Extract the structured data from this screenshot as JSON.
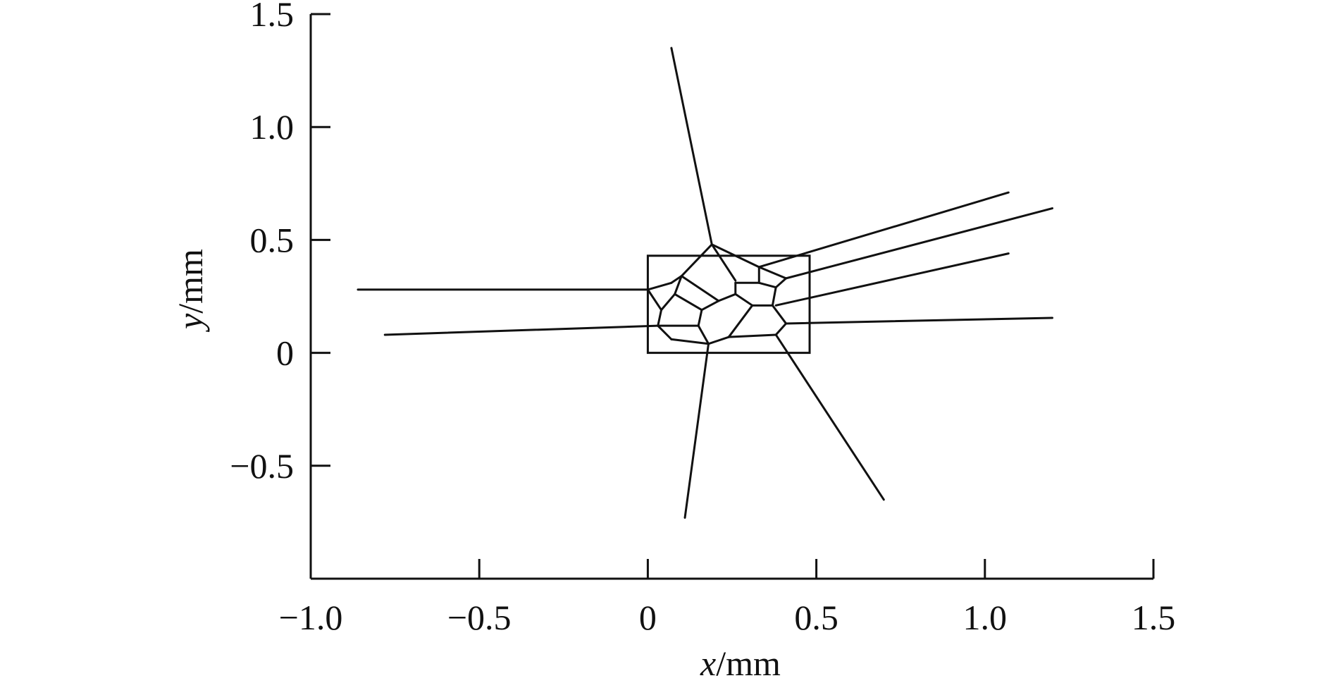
{
  "chart_data": {
    "type": "line",
    "title": "",
    "xlabel": {
      "var": "x",
      "unit": "/mm"
    },
    "ylabel": {
      "var": "y",
      "unit": "/mm"
    },
    "xlim": [
      -1.0,
      1.5
    ],
    "ylim": [
      -1.0,
      1.5
    ],
    "x_ticks": [
      -1.0,
      -0.5,
      0,
      0.5,
      1.0,
      1.5
    ],
    "x_tick_labels": [
      "−1.0",
      "−0.5",
      "0",
      "0.5",
      "1.0",
      "1.5"
    ],
    "y_ticks": [
      -0.5,
      0,
      0.5,
      1.0,
      1.5
    ],
    "y_tick_labels": [
      "−0.5",
      "0",
      "0.5",
      "1.0",
      "1.5"
    ],
    "grid": false,
    "legend": false,
    "line_color": "#111111",
    "domain_rectangle": {
      "x": [
        0.0,
        0.48
      ],
      "y": [
        0.0,
        0.43
      ]
    },
    "edges": [
      [
        [
          0.07,
          1.35
        ],
        [
          0.19,
          0.48
        ]
      ],
      [
        [
          0.19,
          0.48
        ],
        [
          0.1,
          0.34
        ]
      ],
      [
        [
          0.1,
          0.34
        ],
        [
          0.07,
          0.31
        ]
      ],
      [
        [
          0.19,
          0.48
        ],
        [
          0.26,
          0.32
        ]
      ],
      [
        [
          0.19,
          0.48
        ],
        [
          0.33,
          0.38
        ]
      ],
      [
        [
          0.33,
          0.38
        ],
        [
          0.41,
          0.33
        ]
      ],
      [
        [
          0.33,
          0.38
        ],
        [
          0.33,
          0.31
        ]
      ],
      [
        [
          0.41,
          0.33
        ],
        [
          0.38,
          0.29
        ]
      ],
      [
        [
          0.38,
          0.29
        ],
        [
          0.33,
          0.31
        ]
      ],
      [
        [
          0.33,
          0.31
        ],
        [
          0.26,
          0.31
        ]
      ],
      [
        [
          0.26,
          0.31
        ],
        [
          0.26,
          0.26
        ]
      ],
      [
        [
          0.38,
          0.29
        ],
        [
          0.37,
          0.21
        ]
      ],
      [
        [
          0.37,
          0.21
        ],
        [
          0.31,
          0.21
        ]
      ],
      [
        [
          0.31,
          0.21
        ],
        [
          0.26,
          0.26
        ]
      ],
      [
        [
          0.26,
          0.26
        ],
        [
          0.21,
          0.23
        ]
      ],
      [
        [
          0.21,
          0.23
        ],
        [
          0.16,
          0.19
        ]
      ],
      [
        [
          0.16,
          0.19
        ],
        [
          0.15,
          0.12
        ]
      ],
      [
        [
          0.15,
          0.12
        ],
        [
          0.18,
          0.04
        ]
      ],
      [
        [
          0.31,
          0.21
        ],
        [
          0.24,
          0.07
        ]
      ],
      [
        [
          0.24,
          0.07
        ],
        [
          0.38,
          0.08
        ]
      ],
      [
        [
          0.38,
          0.08
        ],
        [
          0.41,
          0.13
        ]
      ],
      [
        [
          0.41,
          0.13
        ],
        [
          0.37,
          0.21
        ]
      ],
      [
        [
          0.24,
          0.07
        ],
        [
          0.18,
          0.04
        ]
      ],
      [
        [
          0.1,
          0.34
        ],
        [
          0.21,
          0.23
        ]
      ],
      [
        [
          0.1,
          0.34
        ],
        [
          0.08,
          0.26
        ]
      ],
      [
        [
          0.07,
          0.31
        ],
        [
          0.0,
          0.28
        ]
      ],
      [
        [
          0.0,
          0.28
        ],
        [
          0.04,
          0.19
        ]
      ],
      [
        [
          0.04,
          0.19
        ],
        [
          0.08,
          0.26
        ]
      ],
      [
        [
          0.08,
          0.26
        ],
        [
          0.16,
          0.19
        ]
      ],
      [
        [
          0.04,
          0.19
        ],
        [
          0.03,
          0.12
        ]
      ],
      [
        [
          0.03,
          0.12
        ],
        [
          0.15,
          0.12
        ]
      ],
      [
        [
          0.03,
          0.12
        ],
        [
          0.07,
          0.06
        ]
      ],
      [
        [
          0.07,
          0.06
        ],
        [
          0.18,
          0.04
        ]
      ],
      [
        [
          -0.86,
          0.28
        ],
        [
          0.0,
          0.28
        ]
      ],
      [
        [
          -0.78,
          0.08
        ],
        [
          0.03,
          0.12
        ]
      ],
      [
        [
          0.33,
          0.38
        ],
        [
          1.07,
          0.71
        ]
      ],
      [
        [
          0.41,
          0.33
        ],
        [
          1.2,
          0.64
        ]
      ],
      [
        [
          0.38,
          0.21
        ],
        [
          1.07,
          0.44
        ]
      ],
      [
        [
          0.41,
          0.13
        ],
        [
          1.2,
          0.155
        ]
      ],
      [
        [
          0.18,
          0.04
        ],
        [
          0.11,
          -0.73
        ]
      ],
      [
        [
          0.38,
          0.08
        ],
        [
          0.7,
          -0.65
        ]
      ]
    ]
  }
}
